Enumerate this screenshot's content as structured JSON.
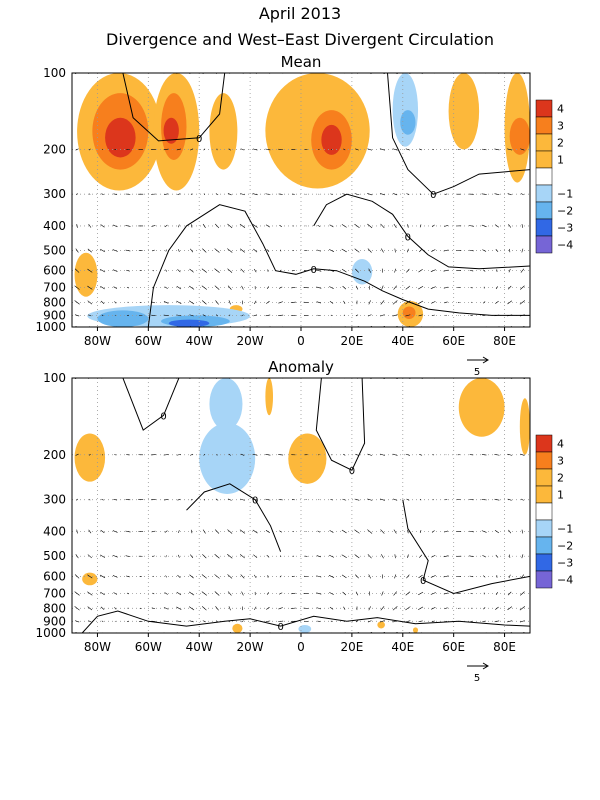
{
  "title_line1": "April 2013",
  "title_line2": "Divergence and West–East Divergent Circulation",
  "chart_data": [
    {
      "type": "heatmap",
      "title": "Mean",
      "x_ticks": [
        "80W",
        "60W",
        "40W",
        "20W",
        "0",
        "20E",
        "40E",
        "60E",
        "80E"
      ],
      "x_values": [
        -80,
        -60,
        -40,
        -20,
        0,
        20,
        40,
        60,
        80
      ],
      "xlim": [
        -90,
        90
      ],
      "y_ticks": [
        "100",
        "200",
        "300",
        "400",
        "500",
        "600",
        "700",
        "800",
        "900",
        "1000"
      ],
      "y_values": [
        100,
        200,
        300,
        400,
        500,
        600,
        700,
        800,
        900,
        1000
      ],
      "ylim_hPa": [
        1000,
        100
      ],
      "y_scale": "log",
      "colorbar_labels": [
        "4",
        "3",
        "2",
        "1",
        "−1",
        "−2",
        "−3",
        "−4"
      ],
      "contour_zero_label": "0",
      "vector_ref_label": "5",
      "regions": [
        {
          "lon": [
            -88,
            -55
          ],
          "p": [
            100,
            290
          ],
          "level": 2
        },
        {
          "lon": [
            -82,
            -60
          ],
          "p": [
            120,
            240
          ],
          "level": 3
        },
        {
          "lon": [
            -77,
            -65
          ],
          "p": [
            150,
            215
          ],
          "level": 4
        },
        {
          "lon": [
            -58,
            -40
          ],
          "p": [
            100,
            290
          ],
          "level": 2
        },
        {
          "lon": [
            -55,
            -45
          ],
          "p": [
            120,
            220
          ],
          "level": 3
        },
        {
          "lon": [
            -54,
            -48
          ],
          "p": [
            150,
            190
          ],
          "level": 4
        },
        {
          "lon": [
            -36,
            -25
          ],
          "p": [
            120,
            240
          ],
          "level": 1
        },
        {
          "lon": [
            -14,
            27
          ],
          "p": [
            100,
            285
          ],
          "level": 2
        },
        {
          "lon": [
            4,
            20
          ],
          "p": [
            140,
            240
          ],
          "level": 3
        },
        {
          "lon": [
            8,
            16
          ],
          "p": [
            160,
            210
          ],
          "level": 4
        },
        {
          "lon": [
            36,
            46
          ],
          "p": [
            100,
            195
          ],
          "level": -1
        },
        {
          "lon": [
            39,
            45
          ],
          "p": [
            140,
            175
          ],
          "level": -2
        },
        {
          "lon": [
            58,
            70
          ],
          "p": [
            100,
            200
          ],
          "level": 2
        },
        {
          "lon": [
            80,
            90
          ],
          "p": [
            100,
            270
          ],
          "level": 2
        },
        {
          "lon": [
            82,
            90
          ],
          "p": [
            150,
            210
          ],
          "level": 3
        },
        {
          "lon": [
            -89,
            -80
          ],
          "p": [
            510,
            760
          ],
          "level": 2
        },
        {
          "lon": [
            20,
            28
          ],
          "p": [
            540,
            680
          ],
          "level": -1
        },
        {
          "lon": [
            -28,
            -23
          ],
          "p": [
            820,
            880
          ],
          "level": 2
        },
        {
          "lon": [
            38,
            48
          ],
          "p": [
            790,
            1000
          ],
          "level": 2
        },
        {
          "lon": [
            40,
            45
          ],
          "p": [
            830,
            930
          ],
          "level": 3
        },
        {
          "lon": [
            -84,
            -20
          ],
          "p": [
            820,
            1000
          ],
          "level": -1
        },
        {
          "lon": [
            -80,
            -60
          ],
          "p": [
            860,
            1000
          ],
          "level": -2
        },
        {
          "lon": [
            -55,
            -28
          ],
          "p": [
            900,
            1000
          ],
          "level": -2
        },
        {
          "lon": [
            -52,
            -36
          ],
          "p": [
            935,
            1000
          ],
          "level": -3
        }
      ],
      "zero_contours": [
        [
          [
            -60,
            1000
          ],
          [
            -58,
            700
          ],
          [
            -52,
            500
          ],
          [
            -45,
            400
          ],
          [
            -32,
            330
          ],
          [
            -22,
            350
          ],
          [
            -15,
            470
          ],
          [
            -10,
            600
          ],
          [
            -2,
            620
          ],
          [
            5,
            590
          ],
          [
            14,
            600
          ],
          [
            25,
            660
          ],
          [
            32,
            720
          ],
          [
            40,
            780
          ],
          [
            50,
            850
          ],
          [
            62,
            880
          ],
          [
            75,
            900
          ],
          [
            90,
            900
          ]
        ],
        [
          [
            34,
            100
          ],
          [
            36,
            180
          ],
          [
            42,
            240
          ],
          [
            52,
            300
          ],
          [
            60,
            280
          ],
          [
            70,
            250
          ],
          [
            90,
            240
          ]
        ],
        [
          [
            -70,
            100
          ],
          [
            -66,
            150
          ],
          [
            -56,
            185
          ],
          [
            -40,
            180
          ],
          [
            -32,
            145
          ],
          [
            -30,
            100
          ]
        ],
        [
          [
            5,
            400
          ],
          [
            10,
            330
          ],
          [
            18,
            300
          ],
          [
            28,
            320
          ],
          [
            36,
            360
          ],
          [
            42,
            440
          ],
          [
            50,
            520
          ],
          [
            58,
            580
          ],
          [
            70,
            590
          ],
          [
            90,
            575
          ]
        ]
      ]
    },
    {
      "type": "heatmap",
      "title": "Anomaly",
      "x_ticks": [
        "80W",
        "60W",
        "40W",
        "20W",
        "0",
        "20E",
        "40E",
        "60E",
        "80E"
      ],
      "x_values": [
        -80,
        -60,
        -40,
        -20,
        0,
        20,
        40,
        60,
        80
      ],
      "xlim": [
        -90,
        90
      ],
      "y_ticks": [
        "100",
        "200",
        "300",
        "400",
        "500",
        "600",
        "700",
        "800",
        "900",
        "1000"
      ],
      "y_values": [
        100,
        200,
        300,
        400,
        500,
        600,
        700,
        800,
        900,
        1000
      ],
      "ylim_hPa": [
        1000,
        100
      ],
      "y_scale": "log",
      "colorbar_labels": [
        "4",
        "3",
        "2",
        "1",
        "−1",
        "−2",
        "−3",
        "−4"
      ],
      "contour_zero_label": "0",
      "vector_ref_label": "5",
      "regions": [
        {
          "lon": [
            -89,
            -77
          ],
          "p": [
            165,
            255
          ],
          "level": 2
        },
        {
          "lon": [
            -36,
            -23
          ],
          "p": [
            100,
            160
          ],
          "level": -1
        },
        {
          "lon": [
            -40,
            -18
          ],
          "p": [
            150,
            285
          ],
          "level": -1
        },
        {
          "lon": [
            -14,
            -11
          ],
          "p": [
            100,
            140
          ],
          "level": 2
        },
        {
          "lon": [
            -5,
            10
          ],
          "p": [
            165,
            260
          ],
          "level": 2
        },
        {
          "lon": [
            62,
            80
          ],
          "p": [
            100,
            170
          ],
          "level": 2
        },
        {
          "lon": [
            86,
            90
          ],
          "p": [
            120,
            200
          ],
          "level": 2
        },
        {
          "lon": [
            -86,
            -80
          ],
          "p": [
            580,
            650
          ],
          "level": 2
        },
        {
          "lon": [
            -27,
            -23
          ],
          "p": [
            920,
            1000
          ],
          "level": 2
        },
        {
          "lon": [
            -1,
            4
          ],
          "p": [
            930,
            1000
          ],
          "level": -1
        },
        {
          "lon": [
            30,
            33
          ],
          "p": [
            900,
            960
          ],
          "level": 2
        },
        {
          "lon": [
            44,
            46
          ],
          "p": [
            950,
            1000
          ],
          "level": 2
        }
      ],
      "zero_contours": [
        [
          [
            -86,
            1000
          ],
          [
            -80,
            860
          ],
          [
            -72,
            820
          ],
          [
            -60,
            900
          ],
          [
            -45,
            940
          ],
          [
            -30,
            900
          ],
          [
            -20,
            880
          ],
          [
            -8,
            940
          ],
          [
            5,
            860
          ],
          [
            18,
            900
          ],
          [
            30,
            870
          ],
          [
            45,
            920
          ],
          [
            62,
            900
          ],
          [
            80,
            930
          ],
          [
            90,
            940
          ]
        ],
        [
          [
            -45,
            330
          ],
          [
            -38,
            280
          ],
          [
            -28,
            260
          ],
          [
            -18,
            300
          ],
          [
            -12,
            380
          ],
          [
            -8,
            480
          ]
        ],
        [
          [
            -70,
            100
          ],
          [
            -62,
            160
          ],
          [
            -54,
            140
          ],
          [
            -48,
            100
          ]
        ],
        [
          [
            8,
            100
          ],
          [
            6,
            160
          ],
          [
            12,
            210
          ],
          [
            20,
            230
          ],
          [
            25,
            180
          ],
          [
            24,
            100
          ]
        ],
        [
          [
            40,
            300
          ],
          [
            42,
            390
          ],
          [
            50,
            520
          ],
          [
            48,
            620
          ],
          [
            60,
            700
          ],
          [
            75,
            640
          ],
          [
            90,
            600
          ]
        ]
      ]
    }
  ],
  "colors": {
    "pos1": "#ffffff",
    "pos2": "#fcb83b",
    "pos3": "#f77f1d",
    "pos4": "#dc361c",
    "neg1": "#a7d5f7",
    "neg2": "#66b4ee",
    "neg3": "#3168e5",
    "neg4": "#7665d6"
  }
}
